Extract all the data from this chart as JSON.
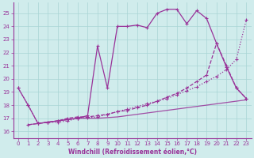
{
  "bg_color": "#d0ecec",
  "grid_color": "#a8d4d4",
  "line_color": "#993399",
  "xlabel": "Windchill (Refroidissement éolien,°C)",
  "xlim": [
    -0.5,
    23.5
  ],
  "ylim": [
    15.5,
    25.8
  ],
  "yticks": [
    16,
    17,
    18,
    19,
    20,
    21,
    22,
    23,
    24,
    25
  ],
  "xticks": [
    0,
    1,
    2,
    3,
    4,
    5,
    6,
    7,
    8,
    9,
    10,
    11,
    12,
    13,
    14,
    15,
    16,
    17,
    18,
    19,
    20,
    21,
    22,
    23
  ],
  "curveA_x": [
    0,
    1,
    2,
    3,
    4,
    5,
    6,
    7,
    8,
    9,
    10,
    11,
    12,
    13,
    14,
    15,
    16,
    17,
    18,
    19,
    20,
    21,
    22,
    23
  ],
  "curveA_y": [
    19.3,
    18.0,
    16.6,
    16.7,
    16.7,
    16.8,
    17.0,
    17.05,
    17.1,
    17.3,
    17.5,
    17.7,
    17.9,
    18.1,
    18.3,
    18.5,
    18.8,
    19.1,
    19.4,
    19.8,
    20.2,
    20.7,
    21.5,
    24.5
  ],
  "curveB_x": [
    0,
    1,
    2,
    3,
    4,
    5,
    6,
    7,
    8,
    9,
    10,
    11,
    12,
    13,
    14,
    15,
    16,
    17,
    18,
    19,
    20,
    21,
    22,
    23
  ],
  "curveB_y": [
    19.3,
    18.0,
    16.6,
    16.7,
    16.8,
    16.9,
    17.0,
    17.2,
    22.5,
    19.3,
    24.0,
    24.0,
    24.1,
    23.9,
    25.0,
    25.3,
    25.3,
    24.2,
    25.2,
    24.6,
    22.7,
    20.9,
    19.3,
    18.5
  ],
  "curveC_x": [
    1,
    2,
    3,
    4,
    5,
    6,
    7,
    8,
    9,
    10,
    11,
    12,
    13,
    14,
    15,
    16,
    17,
    18,
    19,
    20,
    21,
    22,
    23
  ],
  "curveC_y": [
    16.5,
    16.6,
    16.7,
    16.8,
    17.0,
    17.1,
    17.1,
    17.2,
    17.3,
    17.5,
    17.6,
    17.8,
    18.0,
    18.3,
    18.6,
    18.9,
    19.3,
    19.8,
    20.3,
    22.7,
    21.0,
    19.3,
    18.5
  ],
  "curveD_x": [
    1,
    2,
    3,
    4,
    5,
    6,
    7,
    8,
    9,
    10,
    11,
    12,
    13,
    14,
    15,
    16,
    17,
    18,
    19,
    20,
    21,
    22,
    23
  ],
  "curveD_y": [
    16.5,
    16.6,
    16.7,
    16.8,
    16.9,
    17.0,
    17.0,
    17.0,
    17.05,
    17.1,
    17.2,
    17.3,
    17.4,
    17.5,
    17.6,
    17.7,
    17.8,
    17.9,
    18.0,
    18.1,
    18.2,
    18.3,
    18.4
  ]
}
